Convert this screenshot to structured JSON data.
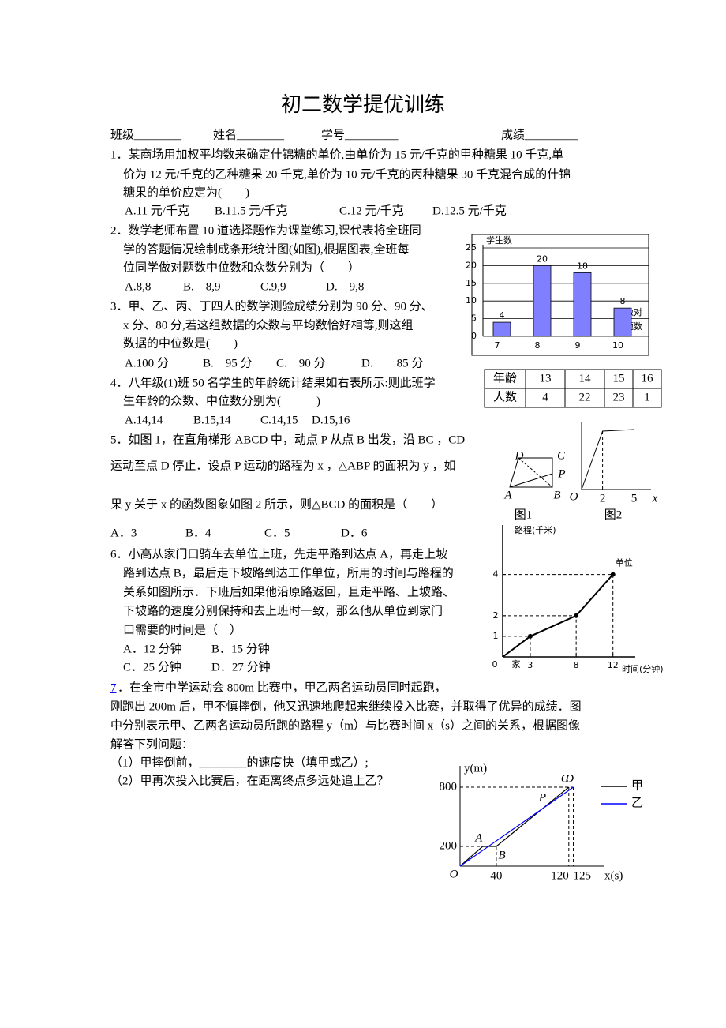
{
  "title": "初二数学提优训练",
  "info": [
    "班级________",
    "姓名________",
    "学号_________",
    "成绩_________"
  ],
  "questions": [
    {
      "lines": [
        "1．某商场用加权平均数来确定什锦糖的单价,由单价为 15 元/千克的甲种糖果 10 千克,单",
        "价为 12 元/千克的乙种糖果 20 千克,单价为 10 元/千克的丙种糖果 30 千克混合成的什锦",
        "糖果的单价应定为(　　)"
      ],
      "options": [
        "A.11 元/千克",
        "B.11.5 元/千克",
        "C.12 元/千克",
        "D.12.5 元/千克"
      ]
    },
    {
      "lines": [
        "2．数学老师布置 10 道选择题作为课堂练习,课代表将全班同",
        "学的答题情况绘制成条形统计图(如图),根据图表,全班每",
        "位同学做对题数中位数和众数分别为（　　）"
      ],
      "options": [
        "A.8,8",
        "B.　8,9",
        "C.9,9",
        "D.　9,8"
      ]
    },
    {
      "lines": [
        "3．甲、乙、丙、丁四人的数学测验成绩分别为 90 分、90 分、",
        "x 分、80 分,若这组数据的众数与平均数恰好相等,则这组",
        "数据的中位数是(　　)"
      ],
      "options": [
        "A.100 分",
        "B.　95 分",
        "C.　90 分",
        "D.　　85 分"
      ]
    },
    {
      "lines": [
        "4．八年级(1)班 50 名学生的年龄统计结果如右表所示:则此班学",
        "生年龄的众数、中位数分别为(　　　)"
      ],
      "options": [
        "A.14,14",
        "B.15,14",
        "C.14,15",
        "D.15,16"
      ]
    },
    {
      "lines": [
        "5．如图 1，在直角梯形 ABCD 中，动点 P 从点 B 出发，沿 BC ，CD",
        "运动至点 D 停止．设点 P 运动的路程为 x ，△ABP 的面积为 y ，如",
        "果 y 关于 x 的函数图象如图 2 所示，则△BCD 的面积是（　　）"
      ],
      "options": [
        "A．3",
        "B．4",
        "C．5",
        "D．6"
      ]
    },
    {
      "lines": [
        "6．小高从家门口骑车去单位上班，先走平路到达点 A，再走上坡",
        "路到达点 B，最后走下坡路到达工作单位，所用的时间与路程的",
        "关系如图所示．下班后如果他沿原路返回，且走平路、上坡路、",
        "下坡路的速度分别保持和去上班时一致，那么他从单位到家门",
        "口需要的时间是（　）"
      ],
      "options": [
        "A．12 分钟",
        "B．15 分钟",
        "C．25 分钟",
        "D．27 分钟"
      ]
    },
    {
      "number": "7",
      "lines": [
        "．在全市中学运动会 800m 比赛中，甲乙两名运动员同时起跑，",
        "刚跑出 200m 后，甲不慎摔倒，他又迅速地爬起来继续投入比赛，并取得了优异的成绩．图",
        "中分别表示甲、乙两名运动员所跑的路程 y（m）与比赛时间 x（s）之间的关系，根据图像",
        "解答下列问题：",
        "（1）甲摔倒前，________的速度快（填甲或乙）;",
        "（2）甲再次投入比赛后，在距离终点多远处追上乙？"
      ]
    }
  ],
  "figures": {
    "bar_chart": {
      "type": "bar",
      "y_label": "学生数",
      "x_label": [
        "做对",
        "题数"
      ],
      "categories": [
        "7",
        "8",
        "9",
        "10"
      ],
      "values": [
        4,
        20,
        18,
        8
      ],
      "ylim": [
        0,
        25
      ],
      "yticks": [
        0,
        5,
        10,
        15,
        20,
        25
      ],
      "grid": true,
      "color": "#8080ff"
    },
    "age_table": {
      "rows": [
        [
          "年龄",
          "13",
          "14",
          "15",
          "16"
        ],
        [
          "人数",
          "4",
          "22",
          "23",
          "1"
        ]
      ]
    },
    "fig1": {
      "labels": [
        "D",
        "C",
        "P",
        "A",
        "B"
      ],
      "caption": "图1"
    },
    "fig2": {
      "origin": "O",
      "xticks": [
        2,
        5
      ],
      "x_label": "x",
      "caption": "图2"
    },
    "route_chart": {
      "type": "line",
      "y_label": "路程(千米)",
      "x_label": "时间(分钟)",
      "origin": "0",
      "home": "家",
      "end_label": "单位",
      "x": [
        0,
        3,
        8,
        12
      ],
      "values": [
        0,
        1,
        2,
        4
      ],
      "xlim": [
        0,
        14
      ],
      "ylim": [
        0,
        6.4
      ],
      "xticks": [
        3,
        8,
        12
      ],
      "yticks": [
        1,
        2,
        4
      ]
    },
    "race_chart": {
      "type": "line",
      "y_label": "y(m)",
      "x_label": "x(s)",
      "origin": "O",
      "intersection_label": "P",
      "xlim": [
        0,
        155
      ],
      "ylim": [
        0,
        1000
      ],
      "xticks": [
        40,
        120,
        125
      ],
      "yticks": [
        200,
        800
      ],
      "series": [
        {
          "name": "甲",
          "color": "#000000",
          "x": [
            0,
            25,
            40,
            120
          ],
          "values": [
            0,
            200,
            200,
            800
          ],
          "point_labels": [
            null,
            "A",
            "B",
            "C"
          ]
        },
        {
          "name": "乙",
          "color": "#0000ff",
          "x": [
            0,
            125
          ],
          "values": [
            0,
            800
          ],
          "point_labels": [
            null,
            "D"
          ]
        }
      ]
    }
  }
}
